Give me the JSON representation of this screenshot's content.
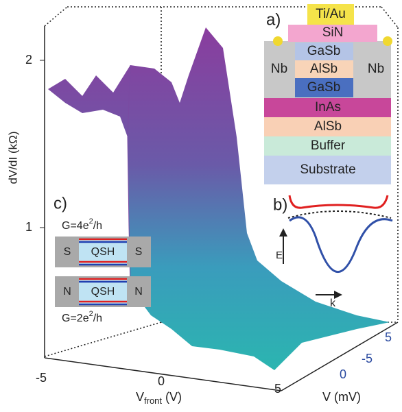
{
  "surface_plot": {
    "z_label": "dV/dI (kΩ)",
    "z_ticks": [
      "2",
      "1"
    ],
    "x_label": {
      "main": "V",
      "sub": "front",
      "unit": " (V)"
    },
    "x_ticks": [
      "-5",
      "0",
      "5"
    ],
    "y_label": "V (mV)",
    "y_ticks": [
      "-5",
      "0",
      "5"
    ]
  },
  "panel_a": {
    "tag": "a)",
    "layers": [
      "Ti/Au",
      "SiN",
      "GaSb",
      "AlSb",
      "GaSb",
      "InAs",
      "AlSb",
      "Buffer",
      "Substrate"
    ],
    "contacts": [
      "Nb",
      "Nb"
    ]
  },
  "panel_b": {
    "tag": "b)",
    "energy": "E",
    "momentum": "k"
  },
  "panel_c": {
    "tag": "c)",
    "top_conductance": {
      "base": "G=4e",
      "exp": "2",
      "rest": "/h"
    },
    "top_device": [
      "S",
      "QSH",
      "S"
    ],
    "bottom_device": [
      "N",
      "QSH",
      "N"
    ],
    "bottom_conductance": {
      "base": "G=2e",
      "exp": "2",
      "rest": "/h"
    }
  }
}
